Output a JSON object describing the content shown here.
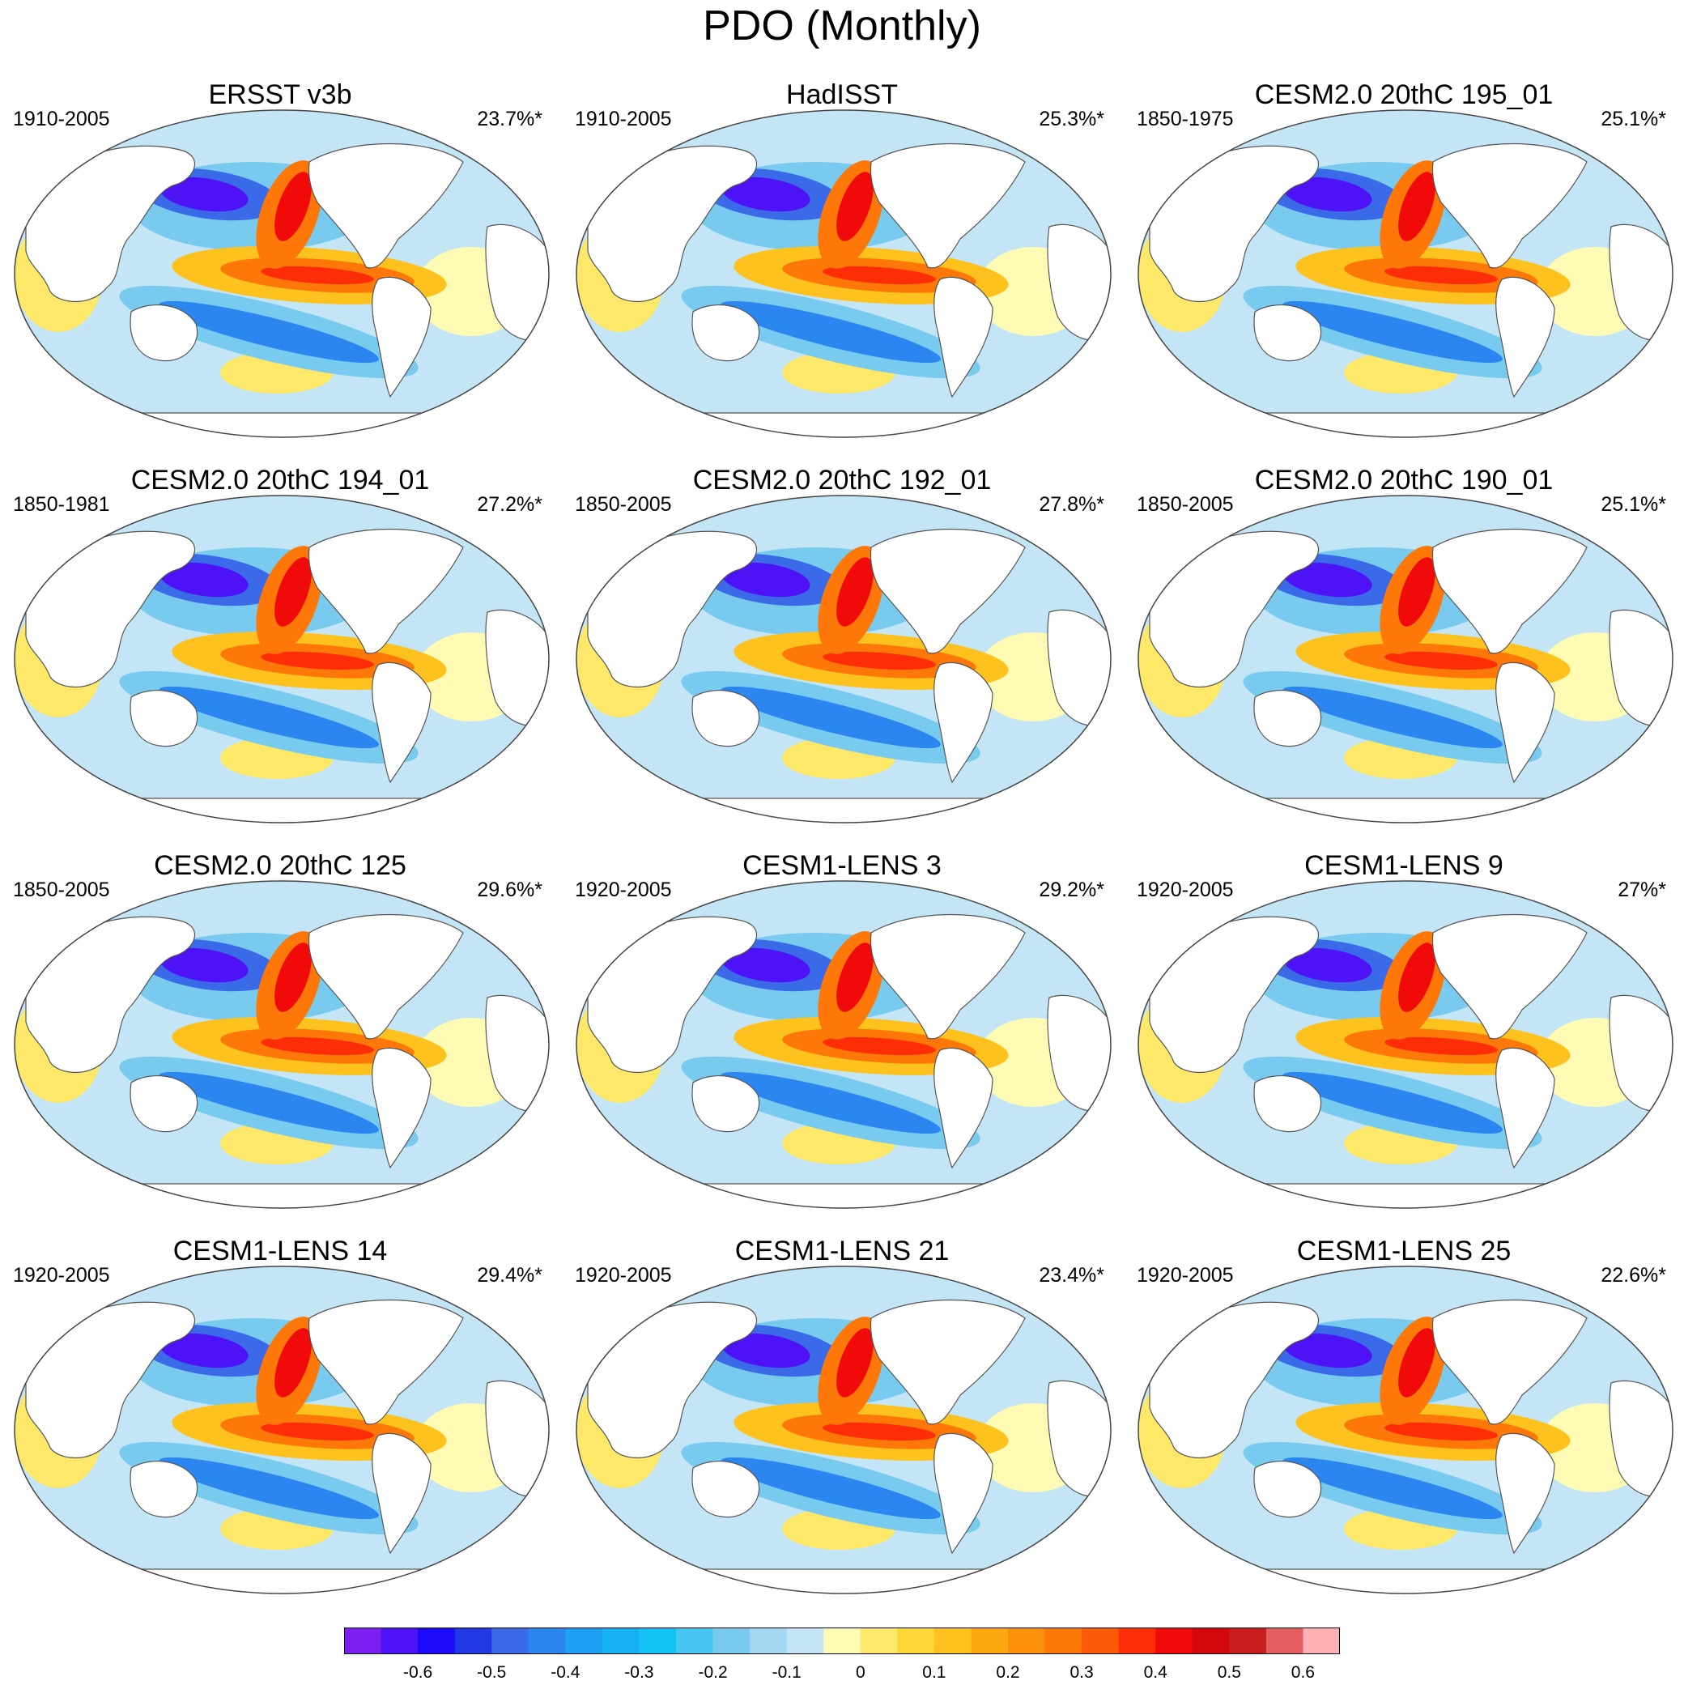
{
  "title": "PDO (Monthly)",
  "panels": [
    {
      "title": "ERSST v3b",
      "years": "1910-2005",
      "pct": "23.7%*"
    },
    {
      "title": "HadISST",
      "years": "1910-2005",
      "pct": "25.3%*"
    },
    {
      "title": "CESM2.0 20thC 195_01",
      "years": "1850-1975",
      "pct": "25.1%*"
    },
    {
      "title": "CESM2.0 20thC 194_01",
      "years": "1850-1981",
      "pct": "27.2%*"
    },
    {
      "title": "CESM2.0 20thC 192_01",
      "years": "1850-2005",
      "pct": "27.8%*"
    },
    {
      "title": "CESM2.0 20thC 190_01",
      "years": "1850-2005",
      "pct": "25.1%*"
    },
    {
      "title": "CESM2.0 20thC 125",
      "years": "1850-2005",
      "pct": "29.6%*"
    },
    {
      "title": "CESM1-LENS 3",
      "years": "1920-2005",
      "pct": "29.2%*"
    },
    {
      "title": "CESM1-LENS 9",
      "years": "1920-2005",
      "pct": "27%*"
    },
    {
      "title": "CESM1-LENS 14",
      "years": "1920-2005",
      "pct": "29.4%*"
    },
    {
      "title": "CESM1-LENS 21",
      "years": "1920-2005",
      "pct": "23.4%*"
    },
    {
      "title": "CESM1-LENS 25",
      "years": "1920-2005",
      "pct": "22.6%*"
    }
  ],
  "colorbar": {
    "colors": [
      "#7b1ff0",
      "#4d12f5",
      "#1e0afb",
      "#2238e6",
      "#3b6ae8",
      "#2b86f0",
      "#1ea0f5",
      "#17b2f5",
      "#14c4f7",
      "#47c6f2",
      "#78cbee",
      "#a2d8f1",
      "#c4e5f5",
      "#fffbb4",
      "#fde86a",
      "#fed637",
      "#fec21e",
      "#fea811",
      "#fd900a",
      "#fd7808",
      "#fd5a07",
      "#fd2d08",
      "#f00a0a",
      "#d2080c",
      "#c81e1e",
      "#e45e60",
      "#fdb1b5"
    ],
    "tick_labels": [
      "-0.6",
      "-0.5",
      "-0.4",
      "-0.3",
      "-0.2",
      "-0.1",
      "0",
      "0.1",
      "0.2",
      "0.3",
      "0.4",
      "0.5",
      "0.6"
    ]
  }
}
